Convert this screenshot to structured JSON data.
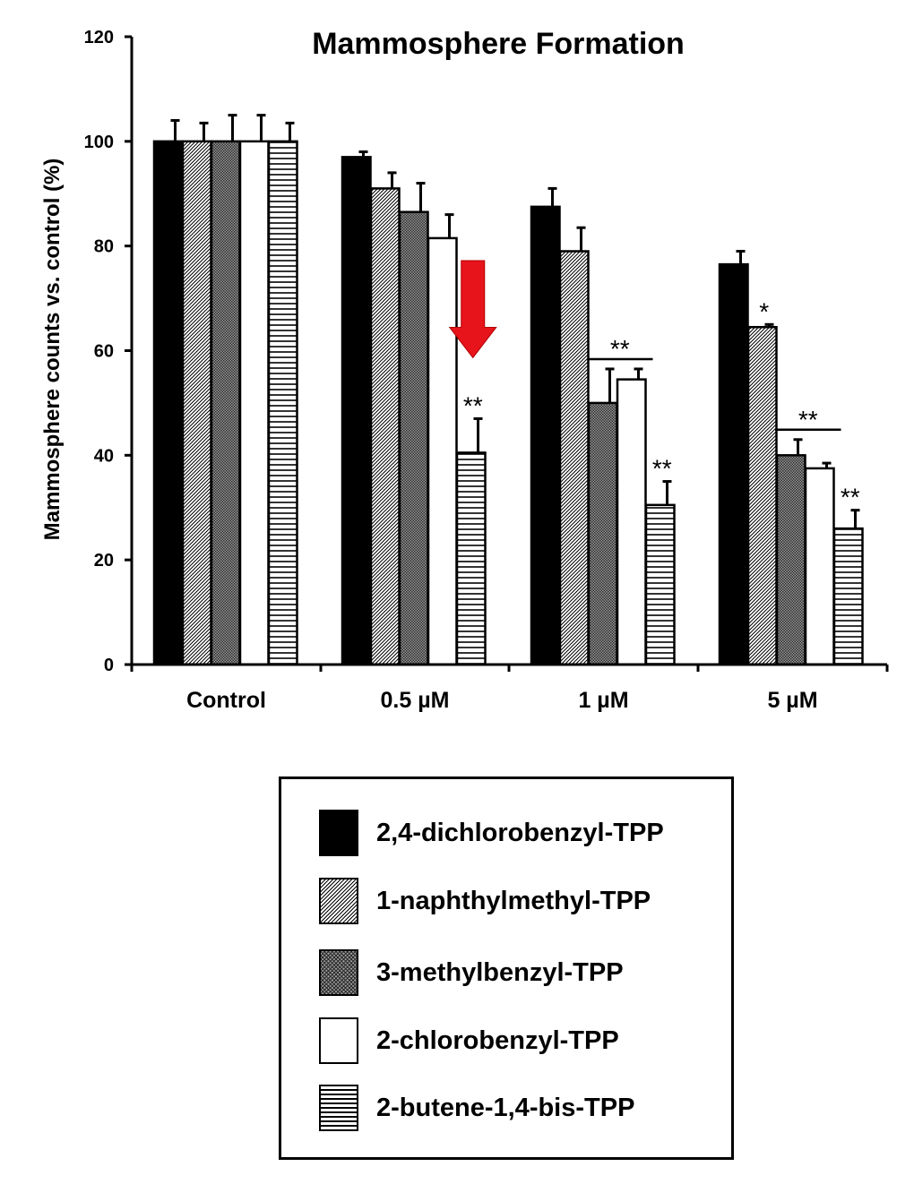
{
  "chart_data": {
    "type": "bar",
    "title": "Mammosphere Formation",
    "xlabel": "",
    "ylabel": "Mammosphere counts vs. control (%)",
    "ylim": [
      0,
      120
    ],
    "yticks": [
      0,
      20,
      40,
      60,
      80,
      100,
      120
    ],
    "categories": [
      "Control",
      "0.5 µM",
      "1 µM",
      "5 µM"
    ],
    "series": [
      {
        "name": "2,4-dichlorobenzyl-TPP",
        "pattern": "solid-black",
        "values": [
          100,
          97,
          87.5,
          76.5
        ],
        "errors": [
          4,
          1,
          3.5,
          2.5
        ]
      },
      {
        "name": "1-naphthylmethyl-TPP",
        "pattern": "fine-diagonal",
        "values": [
          100,
          91,
          79,
          64.5
        ],
        "errors": [
          3.5,
          3,
          4.5,
          0.5
        ]
      },
      {
        "name": "3-methylbenzyl-TPP",
        "pattern": "crosshatch-gray",
        "values": [
          100,
          86.5,
          50,
          40
        ],
        "errors": [
          5,
          5.5,
          6.5,
          3
        ]
      },
      {
        "name": "2-chlorobenzyl-TPP",
        "pattern": "white",
        "values": [
          100,
          81.5,
          54.5,
          37.5
        ],
        "errors": [
          5,
          4.5,
          2,
          1
        ]
      },
      {
        "name": "2-butene-1,4-bis-TPP",
        "pattern": "horizontal-lines",
        "values": [
          100,
          40.5,
          30.5,
          26
        ],
        "errors": [
          3.5,
          6.5,
          4.5,
          3.5
        ]
      }
    ],
    "annotations": [
      {
        "text": "**",
        "category": 1,
        "series": 4
      },
      {
        "text": "**",
        "category": 2,
        "series": [
          2,
          3
        ],
        "bracket": true
      },
      {
        "text": "**",
        "category": 2,
        "series": 4
      },
      {
        "text": "*",
        "category": 3,
        "series": 1
      },
      {
        "text": "**",
        "category": 3,
        "series": [
          2,
          3
        ],
        "bracket": true
      },
      {
        "text": "**",
        "category": 3,
        "series": 4
      }
    ],
    "arrow": {
      "color": "#e8141b",
      "direction": "down",
      "category": 1,
      "series": 4
    }
  }
}
